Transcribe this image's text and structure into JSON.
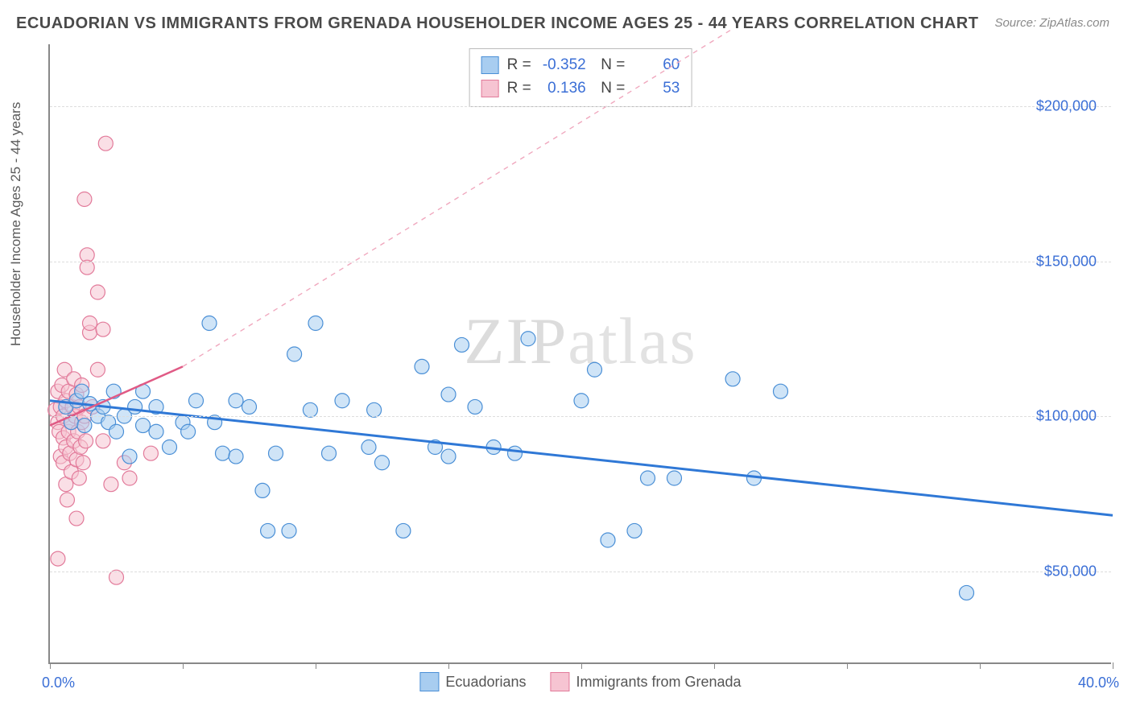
{
  "title": "ECUADORIAN VS IMMIGRANTS FROM GRENADA HOUSEHOLDER INCOME AGES 25 - 44 YEARS CORRELATION CHART",
  "source": "Source: ZipAtlas.com",
  "ylabel": "Householder Income Ages 25 - 44 years",
  "watermark_bold": "ZIP",
  "watermark_thin": "atlas",
  "chart": {
    "type": "scatter",
    "background_color": "#ffffff",
    "grid_color": "#dddddd",
    "axis_color": "#888888",
    "xlim": [
      0,
      40
    ],
    "ylim": [
      20000,
      220000
    ],
    "xticks_pct": [
      0,
      5,
      10,
      15,
      20,
      25,
      30,
      35,
      40
    ],
    "yticks": [
      50000,
      100000,
      150000,
      200000
    ],
    "ytick_labels": [
      "$50,000",
      "$100,000",
      "$150,000",
      "$200,000"
    ],
    "xaxis_min_label": "0.0%",
    "xaxis_max_label": "40.0%",
    "marker_radius": 9,
    "marker_opacity": 0.55,
    "series": [
      {
        "name": "Ecuadorians",
        "color_fill": "#a8cdf0",
        "color_stroke": "#4a8fd6",
        "r_value": "-0.352",
        "n_value": "60",
        "trend": {
          "x1": 0,
          "y1": 105000,
          "x2": 40,
          "y2": 68000,
          "width": 3,
          "dash": "none"
        },
        "points": [
          [
            0.6,
            103000
          ],
          [
            0.8,
            98000
          ],
          [
            1.0,
            105000
          ],
          [
            1.2,
            108000
          ],
          [
            1.3,
            97000
          ],
          [
            1.5,
            104000
          ],
          [
            1.8,
            100000
          ],
          [
            2.0,
            103000
          ],
          [
            2.2,
            98000
          ],
          [
            2.4,
            108000
          ],
          [
            2.5,
            95000
          ],
          [
            2.8,
            100000
          ],
          [
            3.0,
            87000
          ],
          [
            3.2,
            103000
          ],
          [
            3.5,
            97000
          ],
          [
            3.5,
            108000
          ],
          [
            4.0,
            95000
          ],
          [
            4.0,
            103000
          ],
          [
            4.5,
            90000
          ],
          [
            5.0,
            98000
          ],
          [
            5.2,
            95000
          ],
          [
            5.5,
            105000
          ],
          [
            6.0,
            130000
          ],
          [
            6.2,
            98000
          ],
          [
            6.5,
            88000
          ],
          [
            7.0,
            105000
          ],
          [
            7.0,
            87000
          ],
          [
            7.5,
            103000
          ],
          [
            8.0,
            76000
          ],
          [
            8.2,
            63000
          ],
          [
            8.5,
            88000
          ],
          [
            9.0,
            63000
          ],
          [
            9.2,
            120000
          ],
          [
            9.8,
            102000
          ],
          [
            10.0,
            130000
          ],
          [
            10.5,
            88000
          ],
          [
            11.0,
            105000
          ],
          [
            12.0,
            90000
          ],
          [
            12.2,
            102000
          ],
          [
            12.5,
            85000
          ],
          [
            13.3,
            63000
          ],
          [
            14.0,
            116000
          ],
          [
            14.5,
            90000
          ],
          [
            15.0,
            107000
          ],
          [
            15.0,
            87000
          ],
          [
            15.5,
            123000
          ],
          [
            16.0,
            103000
          ],
          [
            16.7,
            90000
          ],
          [
            17.5,
            88000
          ],
          [
            18.0,
            125000
          ],
          [
            20.0,
            105000
          ],
          [
            20.5,
            115000
          ],
          [
            21.0,
            60000
          ],
          [
            22.5,
            80000
          ],
          [
            22.0,
            63000
          ],
          [
            23.5,
            80000
          ],
          [
            25.7,
            112000
          ],
          [
            26.5,
            80000
          ],
          [
            27.5,
            108000
          ],
          [
            34.5,
            43000
          ]
        ]
      },
      {
        "name": "Immigrants from Grenada",
        "color_fill": "#f6c4d2",
        "color_stroke": "#e27a9a",
        "r_value": "0.136",
        "n_value": "53",
        "trend_solid": {
          "x1": 0,
          "y1": 97000,
          "x2": 5,
          "y2": 116000,
          "width": 2.5
        },
        "trend_dash": {
          "x1": 5,
          "y1": 116000,
          "x2": 25.7,
          "y2": 225000,
          "width": 1.4
        },
        "points": [
          [
            0.2,
            102000
          ],
          [
            0.3,
            98000
          ],
          [
            0.3,
            108000
          ],
          [
            0.35,
            95000
          ],
          [
            0.4,
            87000
          ],
          [
            0.4,
            103000
          ],
          [
            0.45,
            110000
          ],
          [
            0.5,
            93000
          ],
          [
            0.5,
            85000
          ],
          [
            0.5,
            100000
          ],
          [
            0.55,
            115000
          ],
          [
            0.6,
            78000
          ],
          [
            0.6,
            90000
          ],
          [
            0.6,
            105000
          ],
          [
            0.65,
            73000
          ],
          [
            0.7,
            95000
          ],
          [
            0.7,
            108000
          ],
          [
            0.75,
            88000
          ],
          [
            0.8,
            98000
          ],
          [
            0.8,
            82000
          ],
          [
            0.85,
            103000
          ],
          [
            0.9,
            112000
          ],
          [
            0.9,
            92000
          ],
          [
            0.95,
            100000
          ],
          [
            1.0,
            86000
          ],
          [
            1.0,
            107000
          ],
          [
            1.0,
            67000
          ],
          [
            1.05,
            95000
          ],
          [
            1.1,
            80000
          ],
          [
            1.1,
            103000
          ],
          [
            1.15,
            90000
          ],
          [
            1.2,
            98000
          ],
          [
            1.2,
            110000
          ],
          [
            1.25,
            85000
          ],
          [
            1.3,
            100000
          ],
          [
            1.3,
            170000
          ],
          [
            1.35,
            92000
          ],
          [
            1.4,
            152000
          ],
          [
            1.4,
            148000
          ],
          [
            1.5,
            127000
          ],
          [
            1.5,
            130000
          ],
          [
            1.6,
            103000
          ],
          [
            1.8,
            140000
          ],
          [
            1.8,
            115000
          ],
          [
            2.0,
            128000
          ],
          [
            2.0,
            92000
          ],
          [
            2.1,
            188000
          ],
          [
            2.3,
            78000
          ],
          [
            2.5,
            48000
          ],
          [
            0.3,
            54000
          ],
          [
            2.8,
            85000
          ],
          [
            3.0,
            80000
          ],
          [
            3.8,
            88000
          ]
        ]
      }
    ],
    "legend": [
      {
        "label": "Ecuadorians",
        "fill": "#a8cdf0",
        "stroke": "#4a8fd6"
      },
      {
        "label": "Immigrants from Grenada",
        "fill": "#f6c4d2",
        "stroke": "#e27a9a"
      }
    ]
  }
}
